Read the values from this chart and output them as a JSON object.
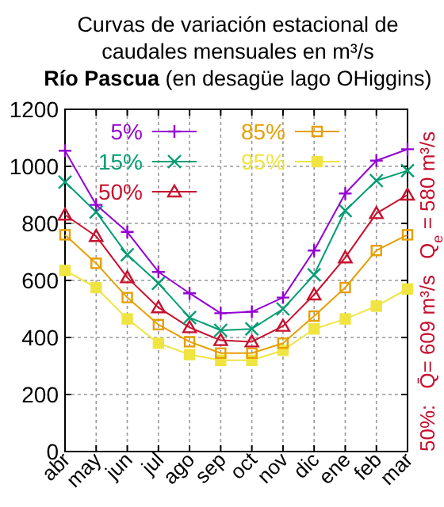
{
  "chart_data": {
    "type": "line",
    "title": "Curvas de variación estacional de\ncaudales mensuales en m³/s",
    "subtitle": "Río Pascua  (en desagüe lago OHiggins)",
    "categories": [
      "abr",
      "may",
      "jun",
      "jul",
      "ago",
      "sep",
      "oct",
      "nov",
      "dic",
      "ene",
      "feb",
      "mar"
    ],
    "series": [
      {
        "name": "5%",
        "color": "#9400d3",
        "marker": "cross",
        "values": [
          1055,
          865,
          770,
          630,
          555,
          485,
          490,
          540,
          705,
          905,
          1020,
          1060
        ]
      },
      {
        "name": "15%",
        "color": "#009e73",
        "marker": "cross",
        "values": [
          945,
          840,
          690,
          590,
          470,
          425,
          430,
          500,
          620,
          845,
          950,
          985
        ]
      },
      {
        "name": "50%",
        "color": "#c8102e",
        "marker": "triangle",
        "values": [
          830,
          755,
          610,
          505,
          435,
          390,
          385,
          440,
          550,
          680,
          835,
          900
        ]
      },
      {
        "name": "85%",
        "color": "#e69f00",
        "marker": "square",
        "values": [
          760,
          660,
          540,
          445,
          385,
          345,
          345,
          380,
          475,
          575,
          705,
          760
        ]
      },
      {
        "name": "95%",
        "color": "#f0e442",
        "marker": "square",
        "values": [
          635,
          575,
          465,
          380,
          340,
          320,
          320,
          355,
          430,
          465,
          510,
          570
        ]
      }
    ],
    "ylim": [
      0,
      1200
    ],
    "yticks": [
      0,
      200,
      400,
      600,
      800,
      1000,
      1200
    ],
    "grid": true,
    "legend": "top",
    "annotations": [
      "50%:",
      "Q̄= 609 m³/s",
      "Q$_{e}$ = 580 m³/s"
    ]
  }
}
